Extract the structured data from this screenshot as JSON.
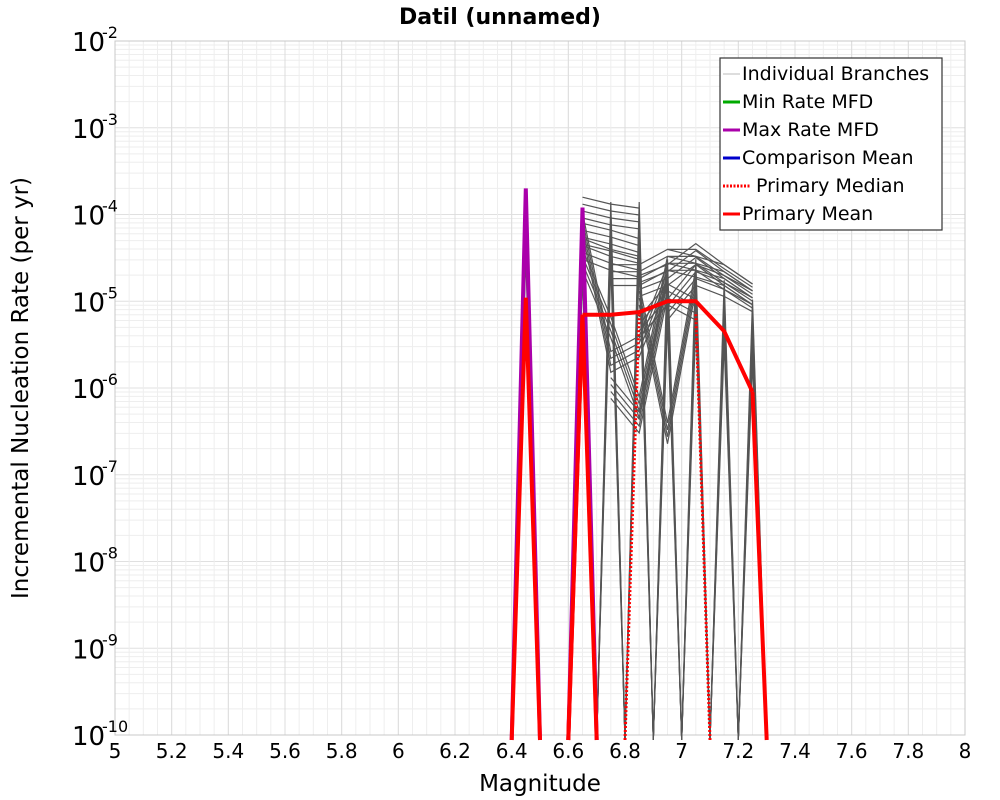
{
  "chart_data": {
    "type": "line",
    "title": "Datil (unnamed)",
    "xlabel": "Magnitude",
    "ylabel": "Incremental Nucleation Rate (per yr)",
    "xlim": [
      5,
      8
    ],
    "ylim": [
      1e-10,
      0.01
    ],
    "yscale": "log",
    "grid": true,
    "legend_position": "top-right",
    "x_ticks": [
      "5",
      "5.2",
      "5.4",
      "5.6",
      "5.8",
      "6",
      "6.2",
      "6.4",
      "6.6",
      "6.8",
      "7",
      "7.2",
      "7.4",
      "7.6",
      "7.8",
      "8"
    ],
    "y_ticks": [
      {
        "base": "10",
        "exp": "-2",
        "value": 0.01
      },
      {
        "base": "10",
        "exp": "-3",
        "value": 0.001
      },
      {
        "base": "10",
        "exp": "-4",
        "value": 0.0001
      },
      {
        "base": "10",
        "exp": "-5",
        "value": 1e-05
      },
      {
        "base": "10",
        "exp": "-6",
        "value": 1e-06
      },
      {
        "base": "10",
        "exp": "-7",
        "value": 1e-07
      },
      {
        "base": "10",
        "exp": "-8",
        "value": 1e-08
      },
      {
        "base": "10",
        "exp": "-9",
        "value": 1e-09
      },
      {
        "base": "10",
        "exp": "-10",
        "value": 1e-10
      }
    ],
    "series": [
      {
        "name": "Individual Branches",
        "color": "#4d4d4d",
        "style": "thin",
        "values_note": "many branches"
      },
      {
        "name": "Min Rate MFD",
        "color": "#00aa00",
        "style": "thick",
        "x": [
          6.45,
          6.65
        ],
        "y": [
          0.0002,
          0.00012
        ]
      },
      {
        "name": "Max Rate MFD",
        "color": "#aa00aa",
        "style": "thick",
        "x": [
          6.45,
          6.65
        ],
        "y": [
          0.0002,
          0.00012
        ]
      },
      {
        "name": "Comparison Mean",
        "color": "#0000cc",
        "style": "thick",
        "x": [],
        "y": []
      },
      {
        "name": "Primary Median",
        "color": "#ff0000",
        "style": "dotted",
        "x": [
          6.45,
          6.65,
          6.75,
          6.85,
          6.95,
          7.05,
          7.15,
          7.25
        ],
        "y": [
          2e-06,
          7e-06,
          7e-06,
          7.5e-06,
          1e-05,
          1e-05,
          4.5e-06,
          9e-07
        ]
      },
      {
        "name": "Primary Mean",
        "color": "#ff0000",
        "style": "thick",
        "x": [
          6.45,
          6.65,
          6.75,
          6.85,
          6.95,
          7.05,
          7.15,
          7.25
        ],
        "y": [
          1.1e-05,
          7e-06,
          7e-06,
          7.5e-06,
          1e-05,
          1e-05,
          4.5e-06,
          9e-07
        ]
      }
    ],
    "branches": [
      {
        "x": [
          6.65,
          6.75,
          6.85
        ],
        "y": [
          0.00012,
          0.0001,
          9e-05
        ]
      },
      {
        "x": [
          6.65,
          6.75,
          6.85
        ],
        "y": [
          6e-05,
          5e-05,
          4e-05
        ]
      },
      {
        "x": [
          6.65,
          6.75,
          6.85
        ],
        "y": [
          4e-05,
          3e-05,
          2.5e-05
        ]
      },
      {
        "x": [
          6.75,
          6.85,
          6.95,
          7.05,
          7.15,
          7.25
        ],
        "y": [
          2e-05,
          2e-05,
          3e-05,
          2.5e-05,
          2e-05,
          1.2e-05
        ]
      },
      {
        "x": [
          6.85,
          6.95,
          7.05,
          7.15,
          7.25
        ],
        "y": [
          1.5e-05,
          2e-05,
          3.5e-05,
          2e-05,
          1.2e-05
        ]
      },
      {
        "x": [
          6.95,
          7.05,
          7.15,
          7.25
        ],
        "y": [
          8e-06,
          2e-05,
          1.5e-05,
          1e-05
        ]
      },
      {
        "x": [
          6.85,
          6.95,
          7.05
        ],
        "y": [
          5e-06,
          1.2e-05,
          8e-06
        ]
      },
      {
        "x": [
          6.65,
          6.75,
          6.85,
          6.95
        ],
        "y": [
          8e-05,
          2e-06,
          3e-06,
          2e-05
        ]
      },
      {
        "x": [
          6.75,
          6.85,
          6.95
        ],
        "y": [
          1e-06,
          4e-07,
          1.5e-05
        ]
      },
      {
        "x": [
          6.85,
          6.95,
          7.05
        ],
        "y": [
          1.2e-05,
          3e-07,
          1.8e-05
        ]
      },
      {
        "x": [
          6.65,
          6.75,
          6.85,
          6.95
        ],
        "y": [
          3e-05,
          5e-06,
          6e-07,
          2.5e-05
        ]
      },
      {
        "x": [
          6.95,
          7.05,
          7.15,
          7.25
        ],
        "y": [
          3e-05,
          3e-05,
          1.8e-05,
          1.1e-05
        ]
      }
    ],
    "spikes": [
      {
        "x": 6.45,
        "top": 0.0002,
        "bottom_left": 6.4,
        "bottom_right": 6.5
      },
      {
        "x": 6.65,
        "top": 0.00012,
        "bottom_left": 6.6,
        "bottom_right": 6.7
      },
      {
        "x": 6.75,
        "top": 0.00016,
        "bottom_left": 6.7,
        "bottom_right": 6.8
      },
      {
        "x": 6.85,
        "top": 0.00016,
        "bottom_left": 6.8,
        "bottom_right": 6.9
      },
      {
        "x": 6.95,
        "top": 3.5e-05,
        "bottom_left": 6.9,
        "bottom_right": 7.0
      },
      {
        "x": 7.05,
        "top": 3.5e-05,
        "bottom_left": 7.0,
        "bottom_right": 7.1
      },
      {
        "x": 7.15,
        "top": 2e-05,
        "bottom_left": 7.1,
        "bottom_right": 7.2
      },
      {
        "x": 7.25,
        "top": 1.2e-05,
        "bottom_left": 7.2,
        "bottom_right": 7.3
      }
    ],
    "primary_spikes": {
      "mean": [
        {
          "x": 6.45,
          "y": 1.1e-05,
          "left": 6.4,
          "right": 6.5
        },
        {
          "x": 6.65,
          "y": 7e-06,
          "left": 6.6,
          "right": 6.7
        }
      ],
      "max_min": [
        {
          "x": 6.45,
          "y": 0.0002,
          "left": 6.4,
          "right": 6.5
        },
        {
          "x": 6.65,
          "y": 0.00012,
          "left": 6.6,
          "right": 6.7
        }
      ]
    }
  }
}
